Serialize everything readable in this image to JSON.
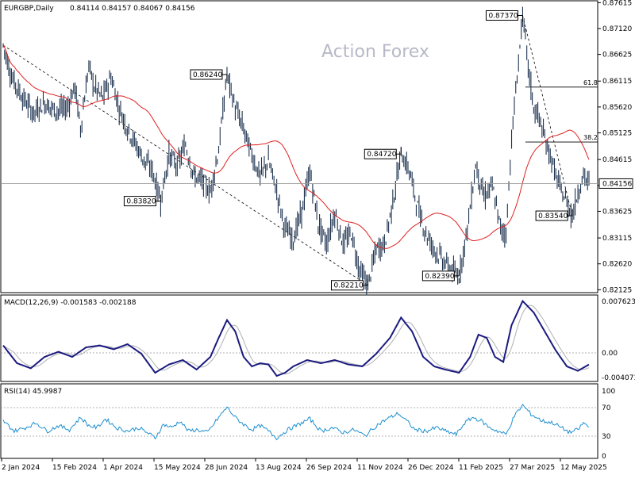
{
  "header": {
    "symbol": "EURGBP,Daily",
    "ohlc": "0.84114 0.84157 0.84067 0.84156"
  },
  "watermark": "Action Forex",
  "chart_data": {
    "type": "candlestick",
    "price_axis": {
      "ticks": [
        "0.87615",
        "0.87120",
        "0.86625",
        "0.86115",
        "0.85620",
        "0.85125",
        "0.84615",
        "0.84120",
        "0.83625",
        "0.83115",
        "0.82620",
        "0.82125"
      ],
      "min": 0.821,
      "max": 0.8762,
      "last_price": "0.84156"
    },
    "date_axis": {
      "ticks": [
        "2 Jan 2024",
        "15 Feb 2024",
        "1 Apr 2024",
        "15 May 2024",
        "28 Jun 2024",
        "13 Aug 2024",
        "26 Sep 2024",
        "11 Nov 2024",
        "26 Dec 2024",
        "11 Feb 2025",
        "27 Mar 2025",
        "12 May 2025"
      ]
    },
    "price_path": [
      [
        0,
        0.868
      ],
      [
        6,
        0.862
      ],
      [
        14,
        0.858
      ],
      [
        22,
        0.855
      ],
      [
        30,
        0.857
      ],
      [
        38,
        0.8555
      ],
      [
        46,
        0.856
      ],
      [
        52,
        0.86
      ],
      [
        56,
        0.852
      ],
      [
        62,
        0.864
      ],
      [
        66,
        0.86
      ],
      [
        72,
        0.858
      ],
      [
        78,
        0.862
      ],
      [
        84,
        0.856
      ],
      [
        90,
        0.852
      ],
      [
        96,
        0.849
      ],
      [
        102,
        0.846
      ],
      [
        108,
        0.844
      ],
      [
        114,
        0.8382
      ],
      [
        120,
        0.847
      ],
      [
        126,
        0.845
      ],
      [
        132,
        0.849
      ],
      [
        138,
        0.843
      ],
      [
        144,
        0.842
      ],
      [
        150,
        0.84
      ],
      [
        156,
        0.848
      ],
      [
        162,
        0.8624
      ],
      [
        168,
        0.856
      ],
      [
        174,
        0.852
      ],
      [
        180,
        0.847
      ],
      [
        186,
        0.843
      ],
      [
        192,
        0.846
      ],
      [
        198,
        0.84
      ],
      [
        204,
        0.833
      ],
      [
        210,
        0.831
      ],
      [
        216,
        0.836
      ],
      [
        222,
        0.844
      ],
      [
        228,
        0.834
      ],
      [
        234,
        0.83
      ],
      [
        240,
        0.836
      ],
      [
        246,
        0.83
      ],
      [
        252,
        0.832
      ],
      [
        258,
        0.825
      ],
      [
        264,
        0.8221
      ],
      [
        270,
        0.829
      ],
      [
        276,
        0.83
      ],
      [
        282,
        0.838
      ],
      [
        288,
        0.8472
      ],
      [
        294,
        0.844
      ],
      [
        300,
        0.837
      ],
      [
        306,
        0.832
      ],
      [
        312,
        0.829
      ],
      [
        318,
        0.827
      ],
      [
        324,
        0.825
      ],
      [
        330,
        0.8239
      ],
      [
        336,
        0.833
      ],
      [
        342,
        0.845
      ],
      [
        348,
        0.839
      ],
      [
        354,
        0.841
      ],
      [
        360,
        0.833
      ],
      [
        364,
        0.832
      ],
      [
        368,
        0.85
      ],
      [
        372,
        0.862
      ],
      [
        376,
        0.8737
      ],
      [
        380,
        0.864
      ],
      [
        384,
        0.856
      ],
      [
        388,
        0.854
      ],
      [
        392,
        0.85
      ],
      [
        396,
        0.847
      ],
      [
        400,
        0.843
      ],
      [
        404,
        0.84
      ],
      [
        408,
        0.838
      ],
      [
        412,
        0.8354
      ],
      [
        416,
        0.84
      ],
      [
        420,
        0.843
      ],
      [
        424,
        0.8416
      ]
    ],
    "moving_average": "red",
    "labels": [
      {
        "text": "0.87370",
        "i": 376,
        "price": 0.8737
      },
      {
        "text": "0.86240",
        "i": 162,
        "price": 0.8624
      },
      {
        "text": "0.84720",
        "i": 288,
        "price": 0.8472
      },
      {
        "text": "0.83820",
        "i": 114,
        "price": 0.8382
      },
      {
        "text": "0.83540",
        "i": 412,
        "price": 0.8354
      },
      {
        "text": "0.82390",
        "i": 330,
        "price": 0.8239
      },
      {
        "text": "0.82210",
        "i": 264,
        "price": 0.8221
      }
    ],
    "fibonacci": [
      {
        "label": "61.8",
        "price": 0.86
      },
      {
        "label": "38.2",
        "price": 0.8495
      }
    ],
    "macd": {
      "label": "MACD(12,26,9) -0.001583 -0.002188",
      "axis_ticks": [
        "0.007623",
        "0.00",
        "-0.004073"
      ],
      "min": -0.0045,
      "max": 0.008,
      "values": [
        [
          0,
          0.0008
        ],
        [
          10,
          -0.002
        ],
        [
          20,
          -0.0028
        ],
        [
          30,
          -0.001
        ],
        [
          40,
          -0.0002
        ],
        [
          50,
          -0.001
        ],
        [
          60,
          0.0005
        ],
        [
          70,
          0.0008
        ],
        [
          80,
          0.0002
        ],
        [
          90,
          0.001
        ],
        [
          100,
          -0.0005
        ],
        [
          110,
          -0.0035
        ],
        [
          120,
          -0.0022
        ],
        [
          130,
          -0.0015
        ],
        [
          140,
          -0.003
        ],
        [
          150,
          -0.001
        ],
        [
          156,
          0.002
        ],
        [
          162,
          0.0048
        ],
        [
          168,
          0.003
        ],
        [
          174,
          -0.001
        ],
        [
          180,
          -0.0025
        ],
        [
          186,
          -0.002
        ],
        [
          192,
          -0.0022
        ],
        [
          198,
          -0.004
        ],
        [
          204,
          -0.0035
        ],
        [
          210,
          -0.0025
        ],
        [
          220,
          -0.0015
        ],
        [
          230,
          -0.002
        ],
        [
          240,
          -0.0015
        ],
        [
          250,
          -0.0022
        ],
        [
          260,
          -0.0025
        ],
        [
          270,
          -0.0005
        ],
        [
          280,
          0.002
        ],
        [
          288,
          0.0052
        ],
        [
          296,
          0.003
        ],
        [
          304,
          -0.001
        ],
        [
          312,
          -0.0025
        ],
        [
          320,
          -0.003
        ],
        [
          330,
          -0.0035
        ],
        [
          338,
          -0.001
        ],
        [
          344,
          0.0025
        ],
        [
          350,
          0.002
        ],
        [
          356,
          -0.001
        ],
        [
          362,
          -0.0018
        ],
        [
          368,
          0.004
        ],
        [
          376,
          0.0078
        ],
        [
          384,
          0.006
        ],
        [
          392,
          0.003
        ],
        [
          400,
          0.0
        ],
        [
          408,
          -0.0025
        ],
        [
          416,
          -0.0032
        ],
        [
          424,
          -0.0022
        ]
      ]
    },
    "rsi": {
      "label": "RSI(14) 45.9987",
      "axis_ticks": [
        "100",
        "70",
        "30",
        "0"
      ],
      "levels": [
        70,
        30
      ],
      "values": [
        [
          0,
          55
        ],
        [
          8,
          40
        ],
        [
          16,
          45
        ],
        [
          24,
          52
        ],
        [
          32,
          40
        ],
        [
          40,
          48
        ],
        [
          48,
          42
        ],
        [
          56,
          60
        ],
        [
          62,
          48
        ],
        [
          68,
          45
        ],
        [
          74,
          58
        ],
        [
          82,
          45
        ],
        [
          90,
          40
        ],
        [
          98,
          45
        ],
        [
          104,
          38
        ],
        [
          110,
          30
        ],
        [
          116,
          50
        ],
        [
          122,
          45
        ],
        [
          128,
          55
        ],
        [
          134,
          40
        ],
        [
          140,
          42
        ],
        [
          148,
          38
        ],
        [
          156,
          60
        ],
        [
          162,
          75
        ],
        [
          168,
          60
        ],
        [
          174,
          50
        ],
        [
          180,
          42
        ],
        [
          186,
          48
        ],
        [
          192,
          40
        ],
        [
          198,
          30
        ],
        [
          206,
          42
        ],
        [
          214,
          50
        ],
        [
          222,
          58
        ],
        [
          230,
          40
        ],
        [
          238,
          45
        ],
        [
          246,
          38
        ],
        [
          254,
          42
        ],
        [
          262,
          33
        ],
        [
          270,
          48
        ],
        [
          278,
          58
        ],
        [
          286,
          66
        ],
        [
          292,
          55
        ],
        [
          298,
          42
        ],
        [
          306,
          40
        ],
        [
          314,
          45
        ],
        [
          320,
          40
        ],
        [
          328,
          35
        ],
        [
          334,
          52
        ],
        [
          340,
          60
        ],
        [
          346,
          55
        ],
        [
          352,
          45
        ],
        [
          358,
          40
        ],
        [
          364,
          35
        ],
        [
          370,
          62
        ],
        [
          376,
          78
        ],
        [
          382,
          65
        ],
        [
          390,
          55
        ],
        [
          398,
          52
        ],
        [
          404,
          45
        ],
        [
          410,
          38
        ],
        [
          416,
          42
        ],
        [
          420,
          52
        ],
        [
          424,
          46
        ]
      ]
    }
  }
}
